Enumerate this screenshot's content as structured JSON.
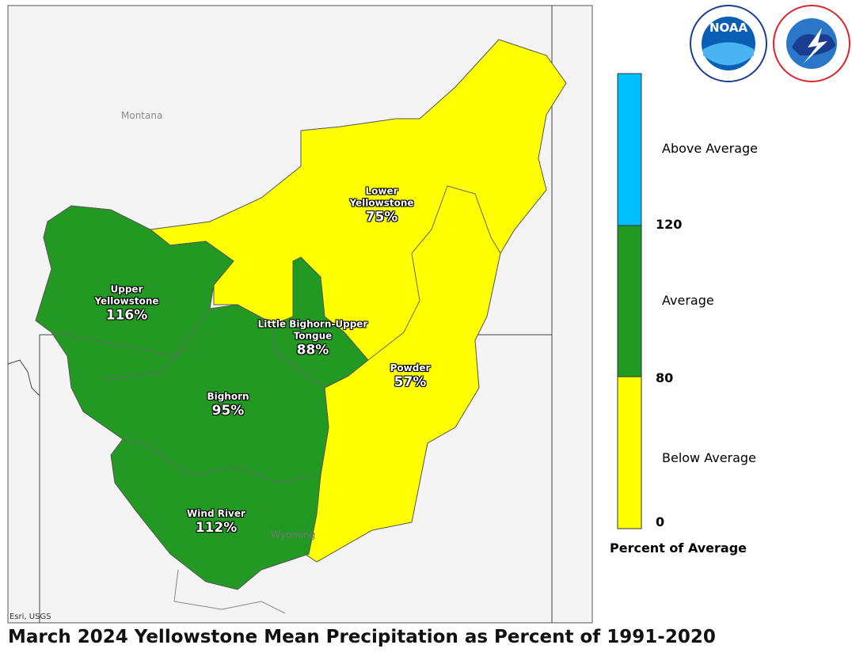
{
  "map": {
    "title": "March 2024 Yellowstone Mean Precipitation as Percent of 1991-2020",
    "attribution": "Esri, USGS",
    "places": [
      {
        "name": "Montana"
      },
      {
        "name": "Wyoming"
      }
    ],
    "basins": [
      {
        "name": "Lower Yellowstone",
        "label": "75%",
        "color": "#ffff00"
      },
      {
        "name": "Upper Yellowstone",
        "label": "116%",
        "color": "#229922"
      },
      {
        "name": "Little Bighorn-Upper Tongue",
        "label": "88%",
        "color": "#229922"
      },
      {
        "name": "Powder",
        "label": "57%",
        "color": "#ffff00"
      },
      {
        "name": "Bighorn",
        "label": "95%",
        "color": "#229922"
      },
      {
        "name": "Wind River",
        "label": "112%",
        "color": "#229922"
      }
    ],
    "legend": {
      "title": "Percent of Average",
      "classes": [
        {
          "label": "Above Average",
          "color": "#00bfff"
        },
        {
          "label": "Average",
          "color": "#229922"
        },
        {
          "label": "Below Average",
          "color": "#ffff00"
        }
      ],
      "breaks": [
        "120",
        "80",
        "0"
      ]
    },
    "logos": {
      "noaa": "NOAA"
    }
  }
}
